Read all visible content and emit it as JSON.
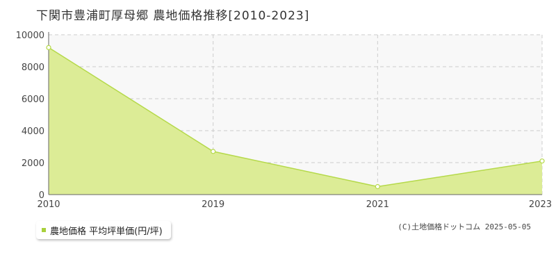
{
  "title": "下関市豊浦町厚母郷 農地価格推移[2010-2023]",
  "legend": {
    "label": "農地価格 平均坪単価(円/坪)"
  },
  "copyright": "(C)土地価格ドットコム 2025-05-05",
  "colors": {
    "fill": "#dcec96",
    "line": "#b5d94a",
    "grid": "#cccccc",
    "plot_bg": "#f8f8f8",
    "swatch": "#a8d03c"
  },
  "chart_data": {
    "type": "area",
    "title": "下関市豊浦町厚母郷 農地価格推移[2010-2023]",
    "x": [
      "2010",
      "2019",
      "2021",
      "2023"
    ],
    "series": [
      {
        "name": "農地価格 平均坪単価(円/坪)",
        "values": [
          9200,
          2700,
          500,
          2100
        ]
      }
    ],
    "ylim": [
      0,
      10000
    ],
    "yticks": [
      "0",
      "2000",
      "4000",
      "6000",
      "8000",
      "10000"
    ],
    "xlabel": "",
    "ylabel": "",
    "grid": true,
    "legend_position": "bottom-left"
  }
}
